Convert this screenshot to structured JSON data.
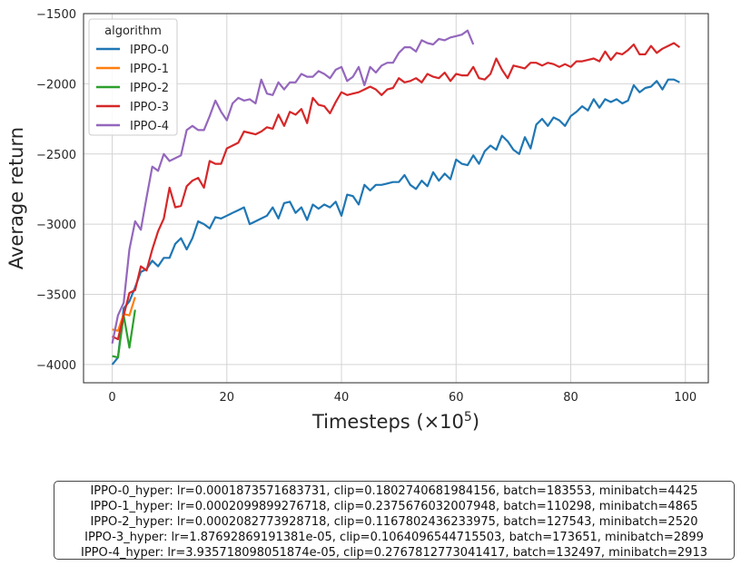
{
  "chart_data": {
    "type": "line",
    "xlabel": "Timesteps (×10",
    "xlabel_exp": "5",
    "xlabel_close": ")",
    "ylabel": "Average return",
    "xlim": [
      -5,
      104
    ],
    "ylim": [
      -4130,
      -1500
    ],
    "xticks": [
      0,
      20,
      40,
      60,
      80,
      100
    ],
    "xtick_labels": [
      "0",
      "20",
      "40",
      "60",
      "80",
      "100"
    ],
    "yticks": [
      -4000,
      -3500,
      -3000,
      -2500,
      -2000,
      -1500
    ],
    "ytick_labels": [
      "−4000",
      "−3500",
      "−3000",
      "−2500",
      "−2000",
      "−1500"
    ],
    "grid": true,
    "legend_title": "algorithm",
    "legend_position": "top-left",
    "series": [
      {
        "name": "IPPO-0",
        "color": "#1f77b4",
        "values": [
          -4000,
          -3950,
          -3600,
          -3550,
          -3450,
          -3340,
          -3320,
          -3260,
          -3300,
          -3240,
          -3240,
          -3140,
          -3100,
          -3180,
          -3100,
          -2980,
          -3000,
          -3030,
          -2950,
          -2960,
          -2940,
          -2920,
          -2900,
          -2880,
          -3000,
          -2980,
          -2960,
          -2940,
          -2880,
          -2960,
          -2850,
          -2840,
          -2920,
          -2880,
          -2970,
          -2860,
          -2890,
          -2860,
          -2880,
          -2840,
          -2940,
          -2790,
          -2800,
          -2860,
          -2720,
          -2760,
          -2720,
          -2720,
          -2710,
          -2700,
          -2700,
          -2650,
          -2720,
          -2750,
          -2690,
          -2730,
          -2630,
          -2690,
          -2640,
          -2680,
          -2540,
          -2570,
          -2580,
          -2510,
          -2570,
          -2480,
          -2440,
          -2470,
          -2370,
          -2410,
          -2470,
          -2500,
          -2380,
          -2460,
          -2290,
          -2250,
          -2300,
          -2240,
          -2260,
          -2300,
          -2230,
          -2200,
          -2160,
          -2190,
          -2110,
          -2170,
          -2110,
          -2130,
          -2110,
          -2140,
          -2120,
          -2010,
          -2060,
          -2030,
          -2020,
          -1980,
          -2040,
          -1970,
          -1970,
          -1990
        ]
      },
      {
        "name": "IPPO-1",
        "color": "#ff7f0e",
        "values": [
          -3750,
          -3760,
          -3640,
          -3650,
          -3520
        ]
      },
      {
        "name": "IPPO-2",
        "color": "#2ca02c",
        "values": [
          -3940,
          -3950,
          -3650,
          -3880,
          -3610
        ]
      },
      {
        "name": "IPPO-3",
        "color": "#d62728",
        "values": [
          -3800,
          -3820,
          -3650,
          -3490,
          -3470,
          -3300,
          -3330,
          -3180,
          -3050,
          -2960,
          -2740,
          -2880,
          -2870,
          -2730,
          -2690,
          -2670,
          -2740,
          -2550,
          -2570,
          -2570,
          -2460,
          -2440,
          -2420,
          -2340,
          -2350,
          -2360,
          -2340,
          -2310,
          -2320,
          -2220,
          -2300,
          -2200,
          -2220,
          -2180,
          -2280,
          -2100,
          -2150,
          -2160,
          -2210,
          -2130,
          -2060,
          -2080,
          -2070,
          -2060,
          -2040,
          -2020,
          -2040,
          -2080,
          -2040,
          -2030,
          -1960,
          -1990,
          -1980,
          -1960,
          -1990,
          -1930,
          -1950,
          -1960,
          -1920,
          -1980,
          -1930,
          -1940,
          -1940,
          -1880,
          -1960,
          -1970,
          -1930,
          -1820,
          -1900,
          -1960,
          -1870,
          -1880,
          -1890,
          -1850,
          -1850,
          -1870,
          -1850,
          -1860,
          -1880,
          -1860,
          -1880,
          -1840,
          -1840,
          -1830,
          -1820,
          -1840,
          -1770,
          -1830,
          -1780,
          -1790,
          -1760,
          -1720,
          -1790,
          -1790,
          -1730,
          -1780,
          -1750,
          -1730,
          -1710,
          -1740
        ]
      },
      {
        "name": "IPPO-4",
        "color": "#9467bd",
        "values": [
          -3850,
          -3650,
          -3560,
          -3180,
          -2980,
          -3040,
          -2810,
          -2590,
          -2620,
          -2500,
          -2550,
          -2530,
          -2510,
          -2330,
          -2300,
          -2330,
          -2330,
          -2230,
          -2120,
          -2200,
          -2260,
          -2140,
          -2100,
          -2120,
          -2110,
          -2140,
          -1970,
          -2070,
          -2080,
          -1990,
          -2040,
          -1990,
          -1990,
          -1930,
          -1950,
          -1950,
          -1910,
          -1930,
          -1960,
          -1900,
          -1880,
          -1980,
          -1950,
          -1880,
          -2010,
          -1880,
          -1920,
          -1870,
          -1850,
          -1850,
          -1780,
          -1740,
          -1740,
          -1770,
          -1690,
          -1710,
          -1720,
          -1680,
          -1690,
          -1670,
          -1660,
          -1650,
          -1620,
          -1720
        ]
      }
    ]
  },
  "hyper_params": [
    "IPPO-0_hyper: lr=0.0001873571683731, clip=0.1802740681984156, batch=183553, minibatch=4425",
    "IPPO-1_hyper: lr=0.0002099899276718, clip=0.2375676032007948, batch=110298, minibatch=4865",
    "IPPO-2_hyper: lr=0.0002082773928718, clip=0.1167802436233975, batch=127543, minibatch=2520",
    "IPPO-3_hyper: lr=1.87692869191381e-05, clip=0.1064096544715503, batch=173651, minibatch=2899",
    "IPPO-4_hyper: lr=3.935718098051874e-05, clip=0.2767812773041417, batch=132497, minibatch=2913"
  ]
}
